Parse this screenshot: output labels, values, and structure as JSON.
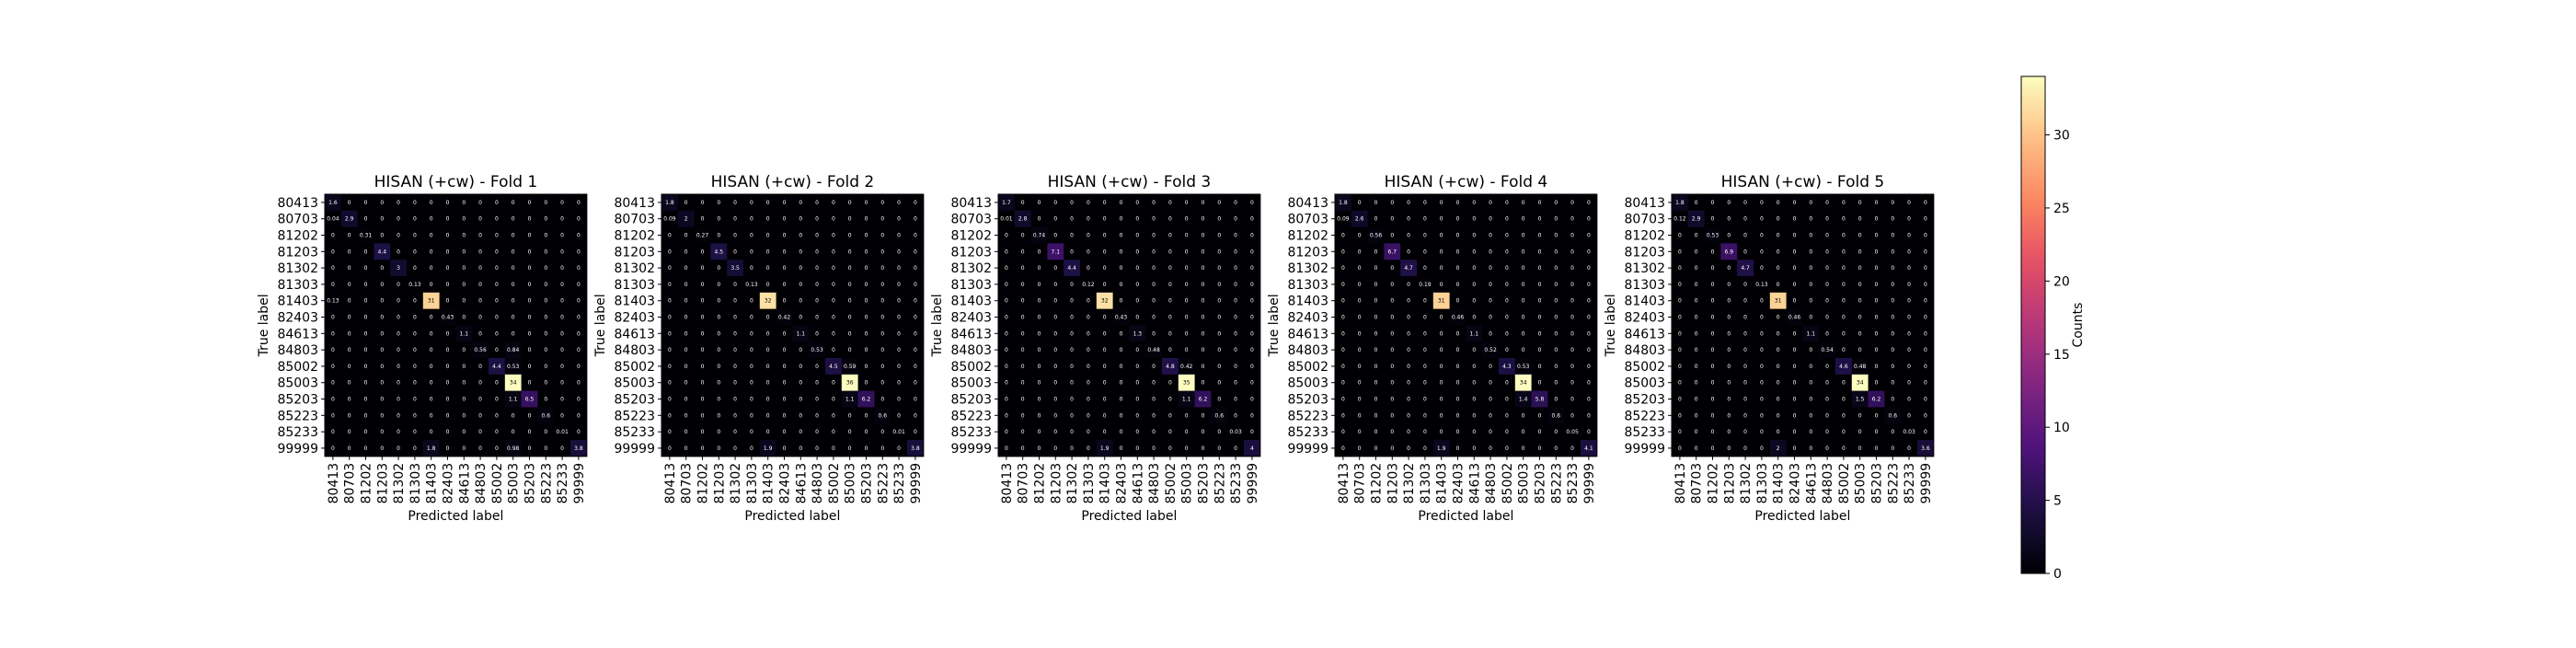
{
  "chart_data": {
    "type": "heatmap",
    "labels": [
      "80413",
      "80703",
      "81202",
      "81203",
      "81302",
      "81303",
      "81403",
      "82403",
      "84613",
      "84803",
      "85002",
      "85003",
      "85203",
      "85223",
      "85233",
      "99999"
    ],
    "xlabel": "Predicted label",
    "ylabel": "True label",
    "vmin": 0,
    "vmax": 34,
    "colormap": "magma",
    "colorbar": {
      "label": "Counts",
      "ticks": [
        0,
        5,
        10,
        15,
        20,
        25,
        30
      ]
    },
    "panels": [
      {
        "title": "HISAN (+cw) - Fold 1",
        "diag": [
          1.6,
          2.9,
          0.31,
          4.4,
          3,
          0.13,
          31,
          0.43,
          1.1,
          0.56,
          4.4,
          34,
          6.5,
          0.6,
          0.01,
          3.8
        ],
        "off": [
          [
            6,
            0,
            0.13
          ],
          [
            9,
            11,
            0.84
          ],
          [
            10,
            11,
            0.53
          ],
          [
            12,
            11,
            1.1
          ],
          [
            15,
            6,
            1.8
          ],
          [
            15,
            11,
            0.98
          ],
          [
            1,
            0,
            0.04
          ]
        ]
      },
      {
        "title": "HISAN (+cw) - Fold 2",
        "diag": [
          1.8,
          2,
          0.27,
          4.5,
          3.5,
          0.13,
          32,
          0.42,
          1.1,
          0.53,
          4.5,
          36,
          6.2,
          0.6,
          0.01,
          3.8
        ],
        "off": [
          [
            15,
            6,
            1.9
          ],
          [
            12,
            11,
            1.1
          ],
          [
            10,
            11,
            0.59
          ],
          [
            1,
            0,
            0.09
          ]
        ]
      },
      {
        "title": "HISAN (+cw) - Fold 3",
        "diag": [
          1.7,
          2.8,
          0.74,
          7.1,
          4.4,
          0.12,
          32,
          0.43,
          1.3,
          0.48,
          4.8,
          35,
          6.2,
          0.6,
          0.03,
          4.0
        ],
        "off": [
          [
            15,
            6,
            1.9
          ],
          [
            12,
            11,
            1.1
          ],
          [
            10,
            11,
            0.42
          ],
          [
            1,
            0,
            0.01
          ]
        ]
      },
      {
        "title": "HISAN (+cw) - Fold 4",
        "diag": [
          1.8,
          2.6,
          0.56,
          6.7,
          4.7,
          0.19,
          31,
          0.46,
          1.1,
          0.52,
          4.3,
          34,
          5.8,
          0.6,
          0.05,
          4.1
        ],
        "off": [
          [
            15,
            6,
            1.9
          ],
          [
            12,
            11,
            1.4
          ],
          [
            10,
            11,
            0.53
          ],
          [
            1,
            0,
            0.09
          ]
        ]
      },
      {
        "title": "HISAN (+cw) - Fold 5",
        "diag": [
          1.8,
          2.9,
          0.53,
          6.9,
          4.7,
          0.13,
          31,
          0.46,
          1.1,
          0.54,
          4.6,
          34,
          6.2,
          0.6,
          0.03,
          3.6
        ],
        "off": [
          [
            15,
            6,
            2
          ],
          [
            12,
            11,
            1.5
          ],
          [
            10,
            11,
            0.48
          ],
          [
            1,
            0,
            0.12
          ]
        ]
      }
    ]
  }
}
